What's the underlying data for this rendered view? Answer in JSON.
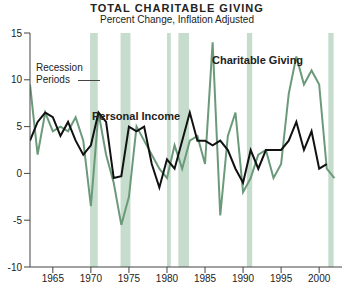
{
  "chart_data": {
    "type": "line",
    "title": "TOTAL CHARITABLE GIVING",
    "subtitle": "Percent Change, Inflation Adjusted",
    "x": [
      1962,
      1963,
      1964,
      1965,
      1966,
      1967,
      1968,
      1969,
      1970,
      1971,
      1972,
      1973,
      1974,
      1975,
      1976,
      1977,
      1978,
      1979,
      1980,
      1981,
      1982,
      1983,
      1984,
      1985,
      1986,
      1987,
      1988,
      1989,
      1990,
      1991,
      1992,
      1993,
      1994,
      1995,
      1996,
      1997,
      1998,
      1999,
      2000,
      2001,
      2002
    ],
    "series": [
      {
        "name": "Charitable Giving",
        "color": "#6b9a7a",
        "values": [
          9.5,
          2,
          6.5,
          4.5,
          5,
          4.5,
          6,
          3.5,
          -3.5,
          6.5,
          2,
          -1,
          -5.5,
          -2.5,
          5,
          3.5,
          2,
          0.5,
          -0.5,
          3,
          0.5,
          3.5,
          4,
          1,
          14,
          -4.5,
          4,
          6.5,
          -2,
          -0.5,
          2,
          2.5,
          -0.5,
          1,
          8.5,
          12.5,
          9.5,
          11,
          9.5,
          0.5,
          -0.5
        ]
      },
      {
        "name": "Personal Income",
        "color": "#111111",
        "values": [
          3.5,
          5.5,
          6.5,
          6,
          4,
          5.5,
          3.5,
          2,
          3,
          6.5,
          5.5,
          -0.5,
          -0.3,
          5,
          4.5,
          5,
          1,
          -1.5,
          1.5,
          0.5,
          3.5,
          6.5,
          3.5,
          3.5,
          3,
          3.5,
          2.5,
          0.5,
          -1,
          2.5,
          0.5,
          2.5,
          2.5,
          2.5,
          3.5,
          5.5,
          2.5,
          4.5,
          0.5,
          1,
          null
        ]
      }
    ],
    "recession_label": "Recession Periods",
    "recession_periods": [
      [
        1969.9,
        1970.9
      ],
      [
        1973.9,
        1975.2
      ],
      [
        1980,
        1980.5
      ],
      [
        1981.5,
        1982.9
      ],
      [
        1990.5,
        1991.2
      ],
      [
        2001.2,
        2001.9
      ]
    ],
    "recession_color": "#c6dccc",
    "xlim": [
      1962,
      2003
    ],
    "xticks": [
      1965,
      1970,
      1975,
      1980,
      1985,
      1990,
      1995,
      2000
    ],
    "ylim": [
      -10,
      15
    ],
    "yticks": [
      -10,
      -5,
      0,
      5,
      10,
      15
    ],
    "grid": false,
    "legend": false
  }
}
